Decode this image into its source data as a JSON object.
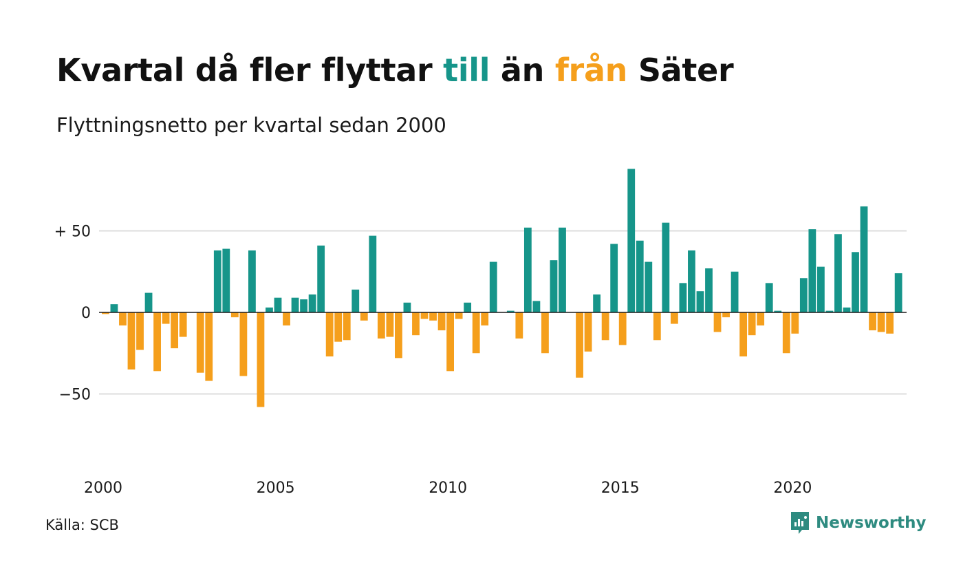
{
  "title": {
    "part1": "Kvartal då fler flyttar ",
    "highlight_in": "till",
    "part2": " än ",
    "highlight_out": "från",
    "part3": " Säter"
  },
  "subtitle": "Flyttningsnetto per kvartal sedan 2000",
  "source": "Källa: SCB",
  "brand": {
    "name": "Newsworthy",
    "icon": "newsworthy-logo-icon"
  },
  "colors": {
    "positive": "#16958a",
    "negative": "#f59f1c",
    "grid": "#dddddd",
    "axis": "#1a1a1a"
  },
  "chart_data": {
    "type": "bar",
    "title": "Kvartal då fler flyttar till än från Säter",
    "subtitle": "Flyttningsnetto per kvartal sedan 2000",
    "xlabel": "",
    "ylabel": "",
    "ylim": [
      -80,
      90
    ],
    "grid": true,
    "y_ticks": [
      {
        "value": 50,
        "label": "+ 50"
      },
      {
        "value": 0,
        "label": "0"
      },
      {
        "value": -50,
        "label": "−50"
      }
    ],
    "x_ticks": [
      {
        "year": 2000,
        "label": "2000"
      },
      {
        "year": 2005,
        "label": "2005"
      },
      {
        "year": 2010,
        "label": "2010"
      },
      {
        "year": 2015,
        "label": "2015"
      },
      {
        "year": 2020,
        "label": "2020"
      }
    ],
    "start": "2000 Q1",
    "frequency": "quarter",
    "values": [
      -1,
      5,
      -8,
      -35,
      -23,
      12,
      -36,
      -7,
      -22,
      -15,
      0,
      -37,
      -42,
      38,
      39,
      -3,
      -39,
      38,
      -58,
      3,
      9,
      -8,
      9,
      8,
      11,
      41,
      -27,
      -18,
      -17,
      14,
      -5,
      47,
      -16,
      -15,
      -28,
      6,
      -14,
      -4,
      -5,
      -11,
      -36,
      -4,
      6,
      -25,
      -8,
      31,
      0,
      1,
      -16,
      52,
      7,
      -25,
      32,
      52,
      0,
      -40,
      -24,
      11,
      -17,
      42,
      -20,
      88,
      44,
      31,
      -17,
      55,
      -7,
      18,
      38,
      13,
      27,
      -12,
      -3,
      25,
      -27,
      -14,
      -8,
      18,
      1,
      -25,
      -13,
      21,
      51,
      28,
      1,
      48,
      3,
      37,
      65,
      -11,
      -12,
      -13,
      24
    ]
  }
}
